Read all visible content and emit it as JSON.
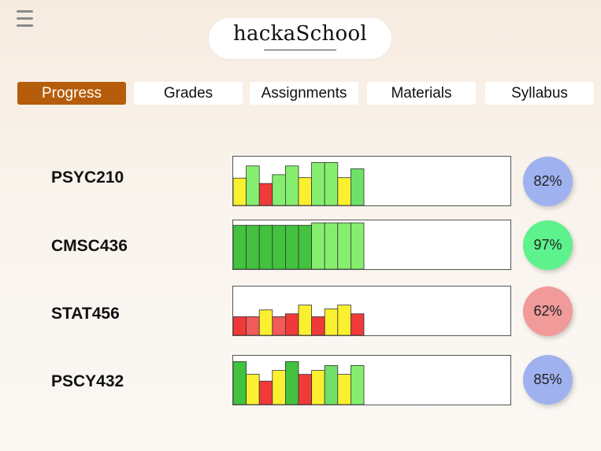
{
  "app": {
    "logo_text": "hackaSchool"
  },
  "tabs": [
    {
      "label": "Progress",
      "active": true
    },
    {
      "label": "Grades",
      "active": false
    },
    {
      "label": "Assignments",
      "active": false
    },
    {
      "label": "Materials",
      "active": false
    },
    {
      "label": "Syllabus",
      "active": false
    }
  ],
  "colors": {
    "active_tab": "#b55d0a",
    "bar_red": "#f03a3a",
    "bar_light_red": "#f25a5a",
    "bar_yellow": "#fbf02f",
    "bar_green": "#6ee06a",
    "bar_dark_green": "#42c23e",
    "bar_light_green": "#86ee6f"
  },
  "courses": [
    {
      "name": "PSYC210",
      "percent": "82%",
      "badge_color": "#9fb2ef",
      "bars": [
        {
          "level": 0.56,
          "color": "#fbf02f"
        },
        {
          "level": 0.81,
          "color": "#86ee6f"
        },
        {
          "level": 0.45,
          "color": "#f03a3a"
        },
        {
          "level": 0.63,
          "color": "#86ee6f"
        },
        {
          "level": 0.81,
          "color": "#86ee6f"
        },
        {
          "level": 0.57,
          "color": "#fbf02f"
        },
        {
          "level": 0.88,
          "color": "#86ee6f"
        },
        {
          "level": 0.88,
          "color": "#86ee6f"
        },
        {
          "level": 0.57,
          "color": "#fbf02f"
        },
        {
          "level": 0.75,
          "color": "#6ee06a"
        }
      ]
    },
    {
      "name": "CMSC436",
      "percent": "97%",
      "badge_color": "#5df28c",
      "bars": [
        {
          "level": 0.9,
          "color": "#42c23e"
        },
        {
          "level": 0.9,
          "color": "#42c23e"
        },
        {
          "level": 0.9,
          "color": "#42c23e"
        },
        {
          "level": 0.9,
          "color": "#42c23e"
        },
        {
          "level": 0.9,
          "color": "#42c23e"
        },
        {
          "level": 0.9,
          "color": "#42c23e"
        },
        {
          "level": 0.95,
          "color": "#86ee6f"
        },
        {
          "level": 0.95,
          "color": "#86ee6f"
        },
        {
          "level": 0.95,
          "color": "#86ee6f"
        },
        {
          "level": 0.95,
          "color": "#86ee6f"
        }
      ]
    },
    {
      "name": "STAT456",
      "percent": "62%",
      "badge_color": "#f09a9a",
      "bars": [
        {
          "level": 0.38,
          "color": "#f03a3a"
        },
        {
          "level": 0.38,
          "color": "#f25a5a"
        },
        {
          "level": 0.52,
          "color": "#fbf02f"
        },
        {
          "level": 0.38,
          "color": "#f25a5a"
        },
        {
          "level": 0.44,
          "color": "#f03a3a"
        },
        {
          "level": 0.62,
          "color": "#fbf02f"
        },
        {
          "level": 0.38,
          "color": "#f03a3a"
        },
        {
          "level": 0.54,
          "color": "#fbf02f"
        },
        {
          "level": 0.62,
          "color": "#fbf02f"
        },
        {
          "level": 0.44,
          "color": "#f03a3a"
        }
      ]
    },
    {
      "name": "PSCY432",
      "percent": "85%",
      "badge_color": "#9fb2ef",
      "bars": [
        {
          "level": 0.88,
          "color": "#42c23e"
        },
        {
          "level": 0.62,
          "color": "#fbf02f"
        },
        {
          "level": 0.48,
          "color": "#f03a3a"
        },
        {
          "level": 0.7,
          "color": "#fbf02f"
        },
        {
          "level": 0.88,
          "color": "#42c23e"
        },
        {
          "level": 0.62,
          "color": "#f03a3a"
        },
        {
          "level": 0.7,
          "color": "#fbf02f"
        },
        {
          "level": 0.8,
          "color": "#6ee06a"
        },
        {
          "level": 0.62,
          "color": "#fbf02f"
        },
        {
          "level": 0.8,
          "color": "#86ee6f"
        }
      ]
    }
  ]
}
